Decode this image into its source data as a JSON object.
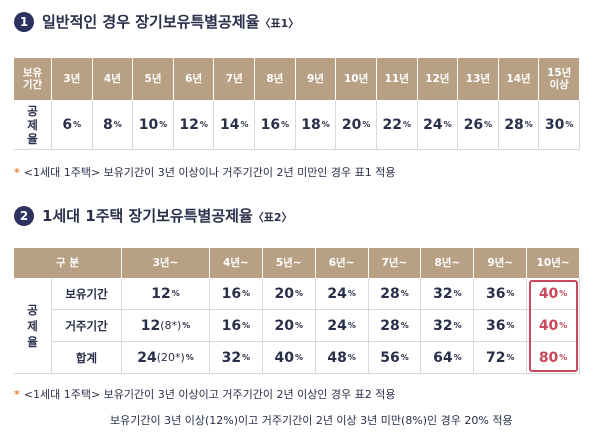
{
  "sections": [
    {
      "number": "1",
      "title": "일반적인 경우 장기보유특별공제율",
      "tag": "〈표1〉"
    },
    {
      "number": "2",
      "title": "1세대 1주택 장기보유특별공제율",
      "tag": "〈표2〉"
    }
  ],
  "table1": {
    "header_label": "보유기간",
    "columns": [
      "3년",
      "4년",
      "5년",
      "6년",
      "7년",
      "8년",
      "9년",
      "10년",
      "11년",
      "12년",
      "13년",
      "14년",
      "15년 이상"
    ],
    "row_label": "공제율",
    "values": [
      {
        "num": "6",
        "unit": "%"
      },
      {
        "num": "8",
        "unit": "%"
      },
      {
        "num": "10",
        "unit": "%"
      },
      {
        "num": "12",
        "unit": "%"
      },
      {
        "num": "14",
        "unit": "%"
      },
      {
        "num": "16",
        "unit": "%"
      },
      {
        "num": "18",
        "unit": "%"
      },
      {
        "num": "20",
        "unit": "%"
      },
      {
        "num": "22",
        "unit": "%"
      },
      {
        "num": "24",
        "unit": "%"
      },
      {
        "num": "26",
        "unit": "%"
      },
      {
        "num": "28",
        "unit": "%"
      },
      {
        "num": "30",
        "unit": "%"
      }
    ]
  },
  "note1": {
    "mark": "*",
    "text": "<1세대 1주택> 보유기간이 3년 이상이나 거주기간이 2년 미만인 경우 표1 적용"
  },
  "table2": {
    "header_label": "구 분",
    "columns": [
      "3년~",
      "4년~",
      "5년~",
      "6년~",
      "7년~",
      "8년~",
      "9년~",
      "10년~"
    ],
    "group_label": "공제율",
    "rows": [
      {
        "label": "보유기간",
        "values": [
          {
            "num": "12",
            "unit": "%"
          },
          {
            "num": "16",
            "unit": "%"
          },
          {
            "num": "20",
            "unit": "%"
          },
          {
            "num": "24",
            "unit": "%"
          },
          {
            "num": "28",
            "unit": "%"
          },
          {
            "num": "32",
            "unit": "%"
          },
          {
            "num": "36",
            "unit": "%"
          },
          {
            "num": "40",
            "unit": "%"
          }
        ]
      },
      {
        "label": "거주기간",
        "values": [
          {
            "num": "12",
            "extra": "(8*)",
            "unit": "%"
          },
          {
            "num": "16",
            "unit": "%"
          },
          {
            "num": "20",
            "unit": "%"
          },
          {
            "num": "24",
            "unit": "%"
          },
          {
            "num": "28",
            "unit": "%"
          },
          {
            "num": "32",
            "unit": "%"
          },
          {
            "num": "36",
            "unit": "%"
          },
          {
            "num": "40",
            "unit": "%"
          }
        ]
      },
      {
        "label": "합계",
        "values": [
          {
            "num": "24",
            "extra": "(20*)",
            "unit": "%"
          },
          {
            "num": "32",
            "unit": "%"
          },
          {
            "num": "40",
            "unit": "%"
          },
          {
            "num": "48",
            "unit": "%"
          },
          {
            "num": "56",
            "unit": "%"
          },
          {
            "num": "64",
            "unit": "%"
          },
          {
            "num": "72",
            "unit": "%"
          },
          {
            "num": "80",
            "unit": "%"
          }
        ]
      }
    ]
  },
  "note2": {
    "mark": "*",
    "text": "<1세대 1주택> 보유기간이 3년 이상이고 거주기간이 2년 이상인 경우 표2 적용",
    "text2": "보유기간이 3년 이상(12%)이고 거주기간이 2년 이상 3년 미만(8%)인 경우 20% 적용"
  }
}
